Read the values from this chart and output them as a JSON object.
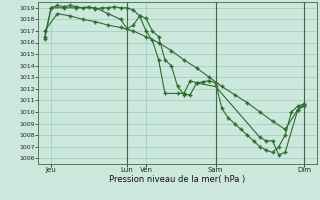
{
  "xlabel": "Pression niveau de la mer( hPa )",
  "bg_color": "#cce8dd",
  "grid_color": "#99ccbb",
  "line_color": "#2d6a2d",
  "ylim": [
    1005.5,
    1019.5
  ],
  "yticks": [
    1006,
    1007,
    1008,
    1009,
    1010,
    1011,
    1012,
    1013,
    1014,
    1015,
    1016,
    1017,
    1018,
    1019
  ],
  "xlim": [
    0,
    22
  ],
  "xtick_positions": [
    1,
    7,
    8.5,
    14,
    21
  ],
  "xtick_labels": [
    "Jeu",
    "Lun",
    "Ven",
    "Sam",
    "Dim"
  ],
  "vlines": [
    7,
    14,
    21
  ],
  "line1_x": [
    0.5,
    1.0,
    1.5,
    2.0,
    2.5,
    3.0,
    3.5,
    4.0,
    4.5,
    5.0,
    5.5,
    6.0,
    6.5,
    7.0,
    7.5,
    8.0,
    8.5,
    9.0,
    9.5,
    10.0,
    10.5,
    11.0,
    11.5,
    12.0,
    12.5,
    13.0,
    13.5,
    14.0,
    14.5,
    15.0,
    15.5,
    16.0,
    16.5,
    17.0,
    17.5,
    18.0,
    18.5,
    19.0,
    19.5,
    20.0,
    20.5,
    21.0
  ],
  "line1_y": [
    1016.5,
    1019.0,
    1019.2,
    1019.1,
    1019.2,
    1019.1,
    1019.0,
    1019.1,
    1018.9,
    1019.0,
    1019.0,
    1019.1,
    1019.0,
    1019.0,
    1018.8,
    1018.3,
    1018.1,
    1017.0,
    1016.5,
    1014.5,
    1014.0,
    1012.2,
    1011.5,
    1011.5,
    1012.5,
    1012.6,
    1012.7,
    1012.5,
    1010.3,
    1009.5,
    1009.0,
    1008.5,
    1008.0,
    1007.5,
    1007.0,
    1006.7,
    1006.5,
    1007.0,
    1008.0,
    1010.0,
    1010.5,
    1010.7
  ],
  "line2_x": [
    0.5,
    1.5,
    2.5,
    3.5,
    4.5,
    5.5,
    6.5,
    7.5,
    8.5,
    9.5,
    10.5,
    11.5,
    12.5,
    13.5,
    14.5,
    15.5,
    16.5,
    17.5,
    18.5,
    19.5,
    20.5,
    21.0
  ],
  "line2_y": [
    1017.0,
    1018.5,
    1018.3,
    1018.0,
    1017.8,
    1017.5,
    1017.3,
    1017.0,
    1016.5,
    1016.0,
    1015.3,
    1014.5,
    1013.8,
    1013.0,
    1012.2,
    1011.5,
    1010.8,
    1010.0,
    1009.2,
    1008.5,
    1010.2,
    1010.5
  ],
  "line3_x": [
    0.5,
    1.0,
    2.0,
    3.0,
    4.5,
    5.5,
    6.5,
    7.0,
    7.5,
    8.0,
    8.5,
    9.0,
    9.5,
    10.0,
    11.0,
    11.5,
    12.0,
    12.5,
    14.0,
    17.5,
    18.0,
    18.5,
    19.0,
    19.5,
    20.5,
    21.0
  ],
  "line3_y": [
    1016.3,
    1019.0,
    1019.0,
    1019.0,
    1019.0,
    1018.5,
    1018.0,
    1017.2,
    1017.5,
    1018.3,
    1017.0,
    1016.2,
    1014.5,
    1011.6,
    1011.6,
    1011.6,
    1012.7,
    1012.5,
    1012.2,
    1007.8,
    1007.5,
    1007.5,
    1006.3,
    1006.5,
    1010.2,
    1010.7
  ]
}
